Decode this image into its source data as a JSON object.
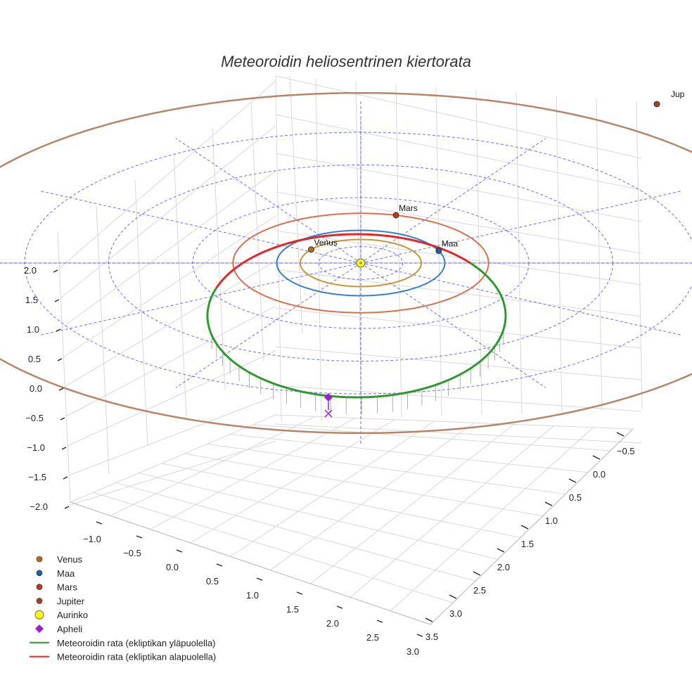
{
  "chart_data": {
    "type": "line3d",
    "title": "Meteoroidin heliosentrinen kiertorata",
    "axes": {
      "x_ticks": [
        "−1.0",
        "−0.5",
        "0.0",
        "0.5",
        "1.0",
        "1.5",
        "2.0",
        "2.5",
        "3.0"
      ],
      "y_ticks": [
        "−0.5",
        "0.0",
        "0.5",
        "1.0",
        "1.5",
        "2.0",
        "2.5",
        "3.0",
        "3.5"
      ],
      "z_ticks": [
        "2.0",
        "1.5",
        "1.0",
        "0.5",
        "0.0",
        "−0.5",
        "−1.0",
        "−1.5",
        "−2.0"
      ],
      "grid": true
    },
    "planets": [
      {
        "name": "Venus",
        "label": "Venus",
        "orbit_radius_au": 0.72,
        "color": "#c8953a",
        "marker_color": "#b86a20"
      },
      {
        "name": "Maa",
        "label": "Maa",
        "orbit_radius_au": 1.0,
        "color": "#3a7ec8",
        "marker_color": "#1f5fa8"
      },
      {
        "name": "Mars",
        "label": "Mars",
        "orbit_radius_au": 1.52,
        "color": "#d9704e",
        "marker_color": "#c03a1a"
      },
      {
        "name": "Jupiter",
        "label": "Jup",
        "orbit_radius_au": 5.2,
        "color": "#b5866a",
        "marker_color": "#a0461e"
      }
    ],
    "sun": {
      "name": "Aurinko",
      "color": "#ffff00"
    },
    "aphelion": {
      "name": "Apheli",
      "color": "#9b1fd1"
    },
    "meteoroid_orbit": {
      "above_ecliptic": {
        "name": "Meteoroidin rata (ekliptikan yläpuolella)",
        "color": "#2e9a2e"
      },
      "below_ecliptic": {
        "name": "Meteoroidin rata (ekliptikan alapuolella)",
        "color": "#e02828"
      }
    },
    "legend": {
      "placement": "bottom-left",
      "entries": [
        {
          "label": "Venus",
          "kind": "dot",
          "color": "#b86a20"
        },
        {
          "label": "Maa",
          "kind": "dot",
          "color": "#1f5fa8"
        },
        {
          "label": "Mars",
          "kind": "dot",
          "color": "#c03a1a"
        },
        {
          "label": "Jupiter",
          "kind": "dot",
          "color": "#a0461e"
        },
        {
          "label": "Aurinko",
          "kind": "sun",
          "color": "#ffff00"
        },
        {
          "label": "Apheli",
          "kind": "diamond",
          "color": "#9b1fd1"
        },
        {
          "label": "Meteoroidin rata (ekliptikan yläpuolella)",
          "kind": "line",
          "color": "#2e9a2e"
        },
        {
          "label": "Meteoroidin rata (ekliptikan alapuolella)",
          "kind": "line",
          "color": "#e02828"
        }
      ]
    }
  }
}
